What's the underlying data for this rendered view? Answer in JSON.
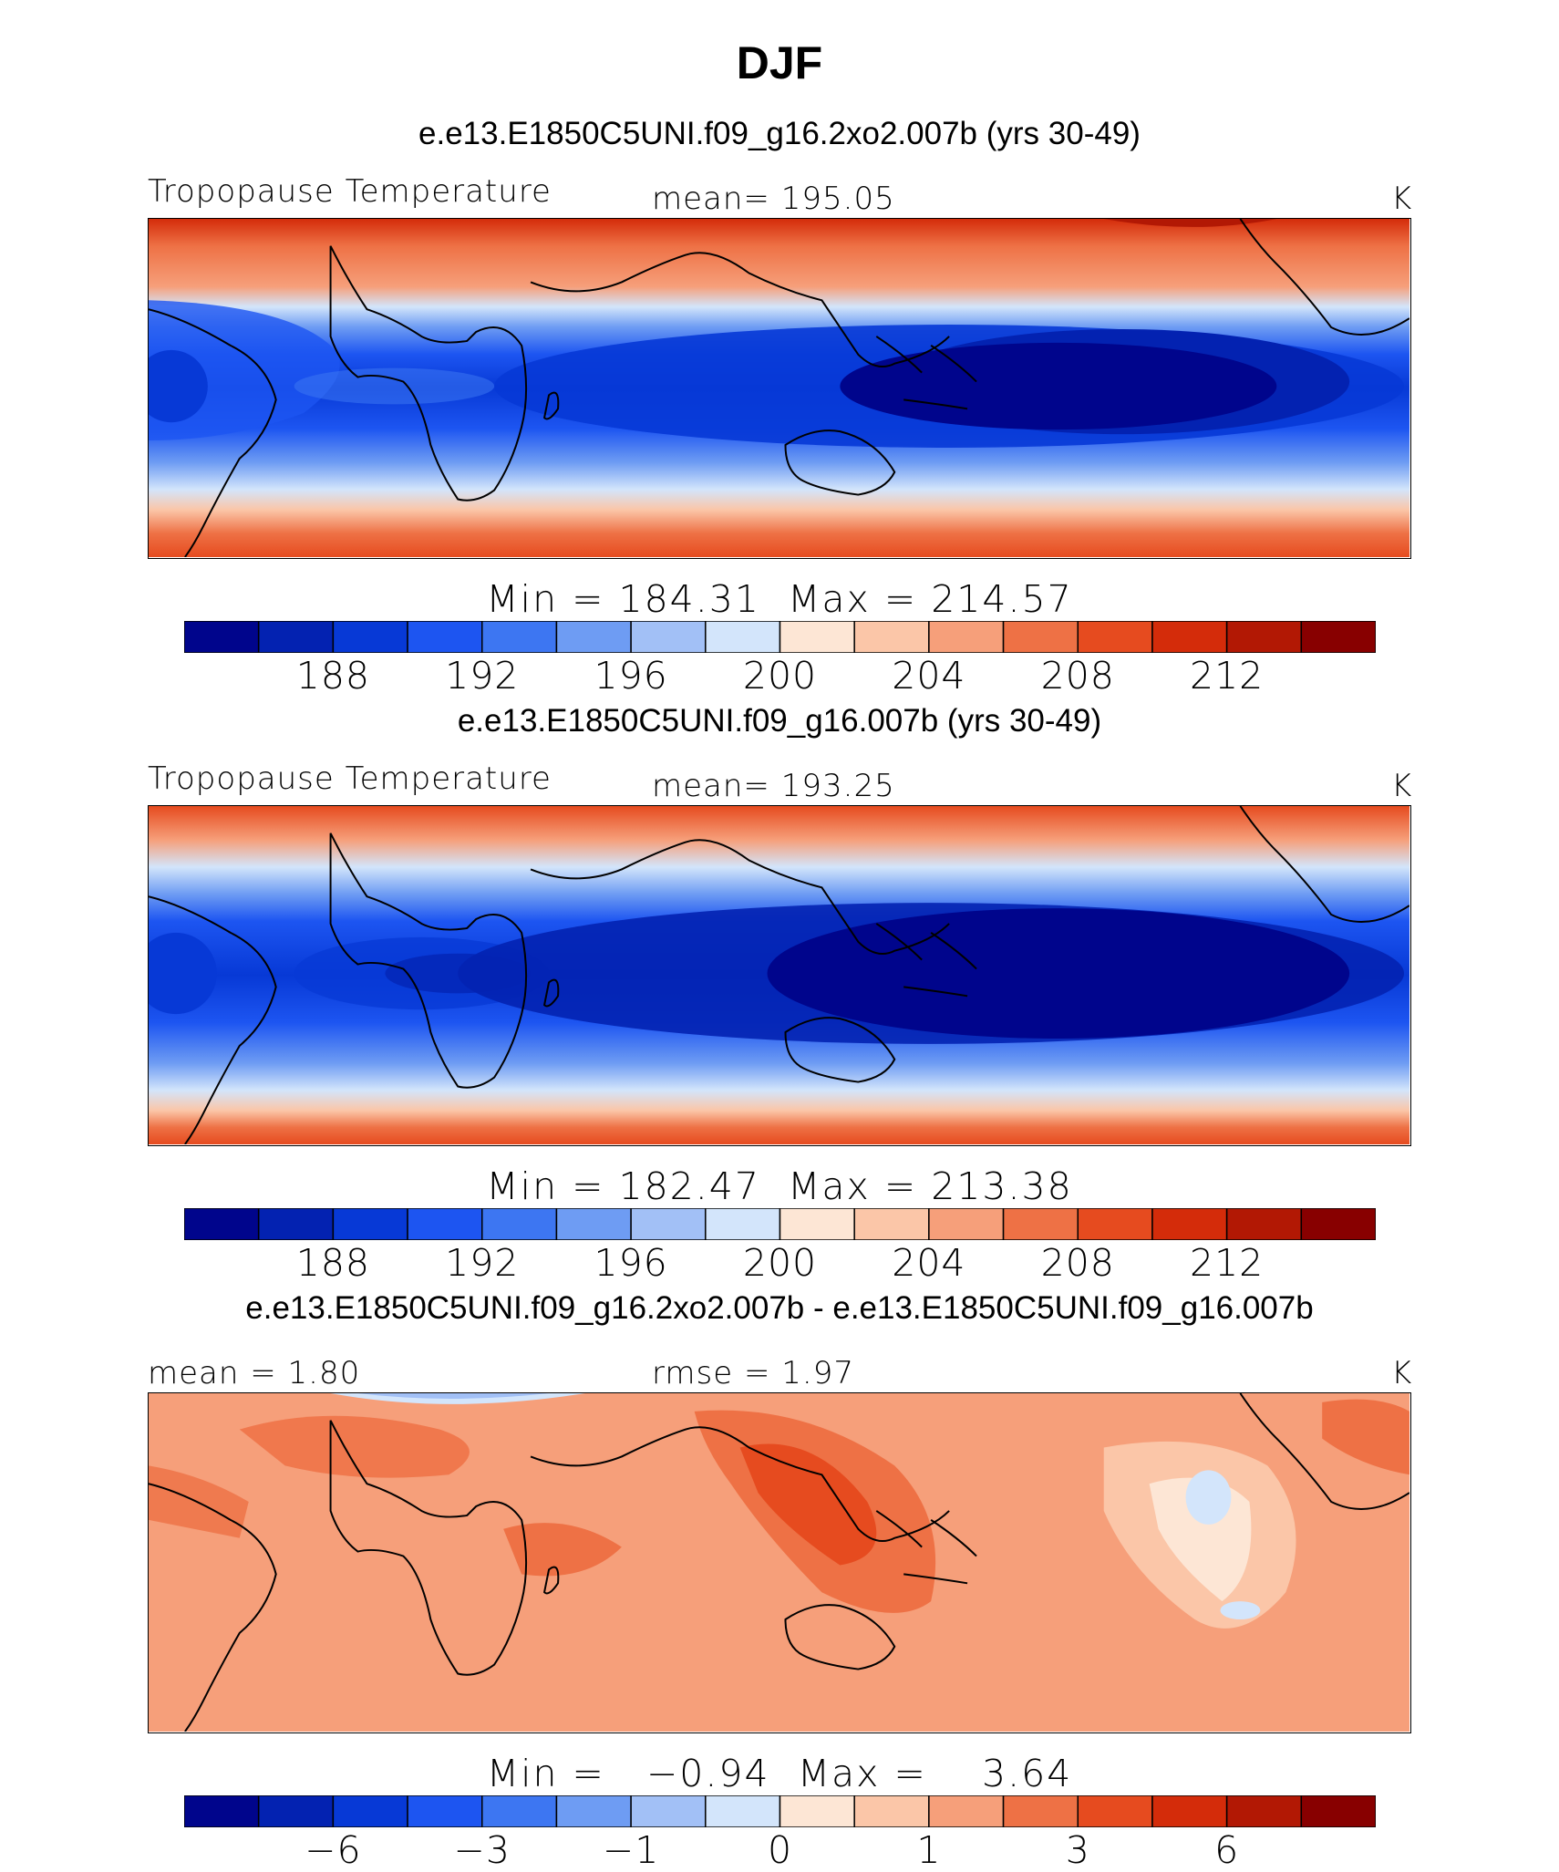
{
  "figure": {
    "title": "DJF"
  },
  "palette": [
    "#00058c",
    "#0322b1",
    "#0739d6",
    "#1d55f1",
    "#3d76f2",
    "#6e9cf3",
    "#a2c0f6",
    "#d3e5fb",
    "#fde6d5",
    "#fbc6a8",
    "#f69f7a",
    "#ee7145",
    "#e64b1f",
    "#d42c0a",
    "#b21804",
    "#880000"
  ],
  "chart_data": [
    {
      "type": "heatmap",
      "case": "e.e13.E1850C5UNI.f09_g16.2xo2.007b (yrs 30-49)",
      "variable": "Tropopause Temperature",
      "mean_label": "mean=",
      "mean": "195.05",
      "units": "K",
      "min_label": "Min",
      "min": "184.31",
      "max_label": "Max",
      "max": "214.57",
      "levels": [
        186,
        188,
        190,
        192,
        194,
        196,
        198,
        200,
        202,
        204,
        206,
        208,
        210,
        212,
        214
      ],
      "tick_labels": [
        "188",
        "192",
        "196",
        "200",
        "204",
        "208",
        "212"
      ]
    },
    {
      "type": "heatmap",
      "case": "e.e13.E1850C5UNI.f09_g16.007b (yrs 30-49)",
      "variable": "Tropopause Temperature",
      "mean_label": "mean=",
      "mean": "193.25",
      "units": "K",
      "min_label": "Min",
      "min": "182.47",
      "max_label": "Max",
      "max": "213.38",
      "levels": [
        186,
        188,
        190,
        192,
        194,
        196,
        198,
        200,
        202,
        204,
        206,
        208,
        210,
        212,
        214
      ],
      "tick_labels": [
        "188",
        "192",
        "196",
        "200",
        "204",
        "208",
        "212"
      ]
    },
    {
      "type": "heatmap",
      "case": "e.e13.E1850C5UNI.f09_g16.2xo2.007b - e.e13.E1850C5UNI.f09_g16.007b",
      "mean_label": "mean =",
      "mean": "1.80",
      "rmse_label": "rmse =",
      "rmse": "1.97",
      "units": "K",
      "min_label": "Min",
      "min": "−0.94",
      "max_label": "Max",
      "max": "3.64",
      "levels": [
        -8,
        -6,
        -4,
        -3,
        -2,
        -1,
        -0.5,
        0,
        0.5,
        1,
        2,
        3,
        4,
        6,
        8
      ],
      "tick_labels": [
        "−6",
        "−3",
        "−1",
        "0",
        "1",
        "3",
        "6"
      ]
    }
  ]
}
